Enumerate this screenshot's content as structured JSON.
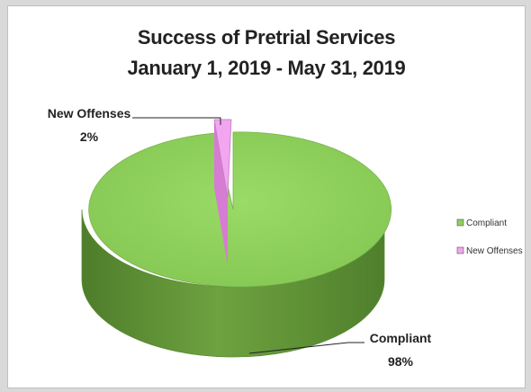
{
  "chart_data": {
    "type": "pie",
    "title": "Success of Pretrial Services",
    "subtitle": "January 1, 2019 - May 31, 2019",
    "categories": [
      "Compliant",
      "New Offenses"
    ],
    "values": [
      98,
      2
    ],
    "data_labels": [
      {
        "name": "Compliant",
        "percent": "98%"
      },
      {
        "name": "New Offenses",
        "percent": "2%"
      }
    ],
    "colors": {
      "Compliant": "#8cd05a",
      "New Offenses": "#f3a6f0"
    },
    "legend": {
      "placement": "right",
      "entries": [
        "Compliant",
        "New Offenses"
      ]
    },
    "style": "3d-exploded"
  }
}
